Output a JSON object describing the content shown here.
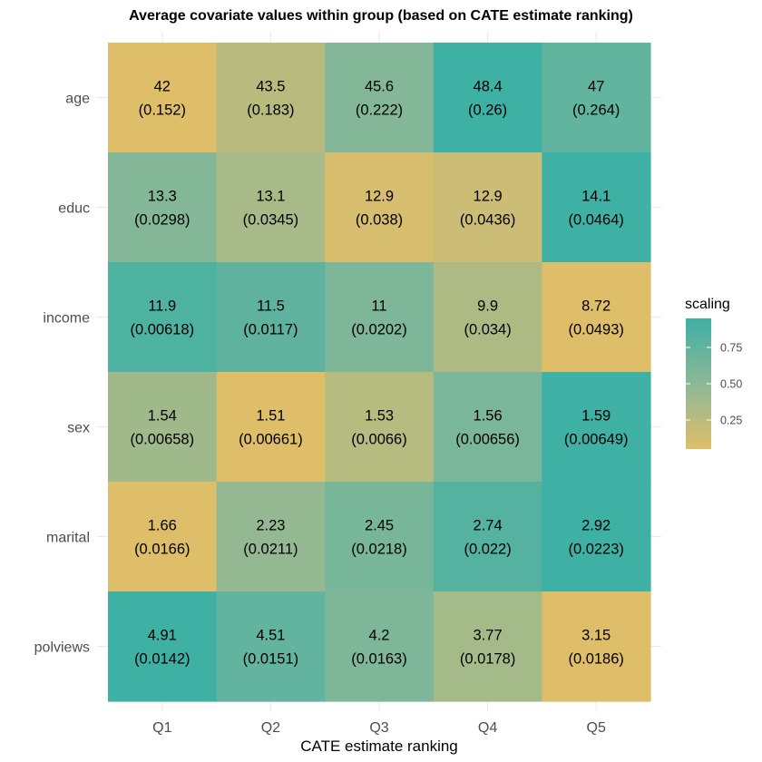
{
  "chart_data": {
    "type": "heatmap",
    "title": "Average covariate values within group (based on CATE estimate ranking)",
    "xlabel": "CATE estimate ranking",
    "ylabel": "",
    "x_categories": [
      "Q1",
      "Q2",
      "Q3",
      "Q4",
      "Q5"
    ],
    "y_categories": [
      "age",
      "educ",
      "income",
      "sex",
      "marital",
      "polviews"
    ],
    "cells": [
      {
        "y": "age",
        "values": [
          "42",
          "43.5",
          "45.6",
          "48.4",
          "47"
        ],
        "se": [
          "(0.152)",
          "(0.183)",
          "(0.222)",
          "(0.26)",
          "(0.264)"
        ],
        "scaling": [
          0.0,
          0.23,
          0.56,
          1.0,
          0.78
        ]
      },
      {
        "y": "educ",
        "values": [
          "13.3",
          "13.1",
          "12.9",
          "12.9",
          "14.1"
        ],
        "se": [
          "(0.0298)",
          "(0.0345)",
          "(0.038)",
          "(0.0436)",
          "(0.0464)"
        ],
        "scaling": [
          0.56,
          0.34,
          0.05,
          0.12,
          1.0
        ]
      },
      {
        "y": "income",
        "values": [
          "11.9",
          "11.5",
          "11",
          "9.9",
          "8.72"
        ],
        "se": [
          "(0.00618)",
          "(0.0117)",
          "(0.0202)",
          "(0.034)",
          "(0.0493)"
        ],
        "scaling": [
          0.9,
          0.79,
          0.6,
          0.3,
          0.0
        ]
      },
      {
        "y": "sex",
        "values": [
          "1.54",
          "1.51",
          "1.53",
          "1.56",
          "1.59"
        ],
        "se": [
          "(0.00658)",
          "(0.00661)",
          "(0.0066)",
          "(0.00656)",
          "(0.00649)"
        ],
        "scaling": [
          0.38,
          0.0,
          0.25,
          0.62,
          1.0
        ]
      },
      {
        "y": "marital",
        "values": [
          "1.66",
          "2.23",
          "2.45",
          "2.74",
          "2.92"
        ],
        "se": [
          "(0.0166)",
          "(0.0211)",
          "(0.0218)",
          "(0.022)",
          "(0.0223)"
        ],
        "scaling": [
          0.0,
          0.45,
          0.63,
          0.86,
          1.0
        ]
      },
      {
        "y": "polviews",
        "values": [
          "4.91",
          "4.51",
          "4.2",
          "3.77",
          "3.15"
        ],
        "se": [
          "(0.0142)",
          "(0.0151)",
          "(0.0163)",
          "(0.0178)",
          "(0.0186)"
        ],
        "scaling": [
          1.0,
          0.77,
          0.6,
          0.35,
          0.0
        ]
      }
    ],
    "legend": {
      "title": "scaling",
      "position": "right",
      "ticks": [
        "0.25",
        "0.50",
        "0.75"
      ],
      "tick_values": [
        0.25,
        0.5,
        0.75
      ],
      "range": [
        0.05,
        0.95
      ]
    },
    "colors": {
      "low": "#dfbe6a",
      "mid": "#8cb896",
      "high": "#3fb0a4"
    },
    "grid": true
  }
}
